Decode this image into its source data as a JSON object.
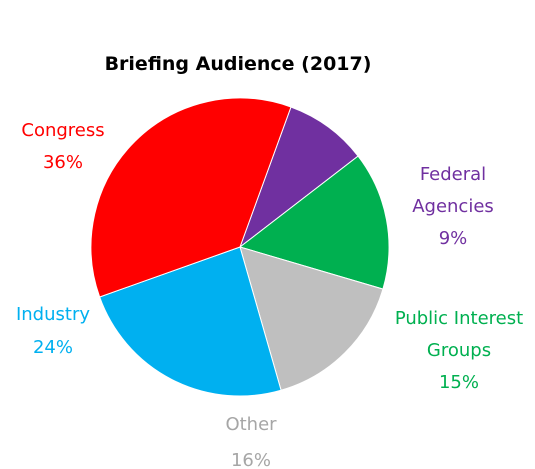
{
  "chart_data": {
    "type": "pie",
    "title": "Briefing Audience (2017)",
    "slices": [
      {
        "label_lines": [
          "Federal",
          "Agencies"
        ],
        "value_label": "9%",
        "value": 9,
        "color": "#7030a0"
      },
      {
        "label_lines": [
          "Public Interest",
          "Groups"
        ],
        "value_label": "15%",
        "value": 15,
        "color": "#00b050"
      },
      {
        "label_lines": [
          "Other"
        ],
        "value_label": "16%",
        "value": 16,
        "color": "#bfbfbf"
      },
      {
        "label_lines": [
          "Industry"
        ],
        "value_label": "24%",
        "value": 24,
        "color": "#00b0f0"
      },
      {
        "label_lines": [
          "Congress"
        ],
        "value_label": "36%",
        "value": 36,
        "color": "#ff0000"
      }
    ]
  }
}
